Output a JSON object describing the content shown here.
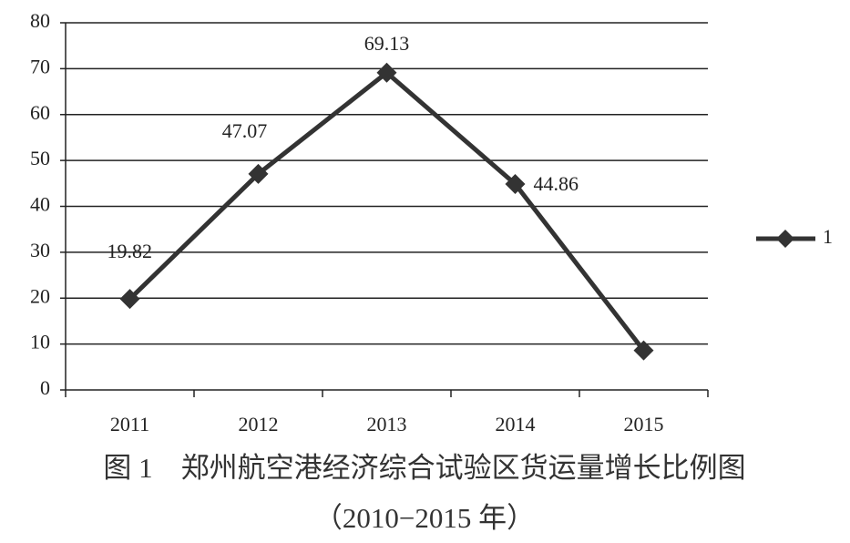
{
  "chart_data": {
    "type": "line",
    "title": "图 1　郑州航空港经济综合试验区货运量增长比例图",
    "subtitle": "（2010−2015 年）",
    "categories": [
      "2011",
      "2012",
      "2013",
      "2014",
      "2015"
    ],
    "series": [
      {
        "name": "1",
        "color": "#333333",
        "values": [
          19.82,
          47.07,
          69.13,
          44.86,
          8.6
        ],
        "value_labels": [
          "19.82",
          "47.07",
          "69.13",
          "44.86",
          null
        ]
      }
    ],
    "ylim": [
      0,
      80
    ],
    "yticks": [
      0,
      10,
      20,
      30,
      40,
      50,
      60,
      70,
      80
    ],
    "grid": true,
    "legend": "right"
  }
}
